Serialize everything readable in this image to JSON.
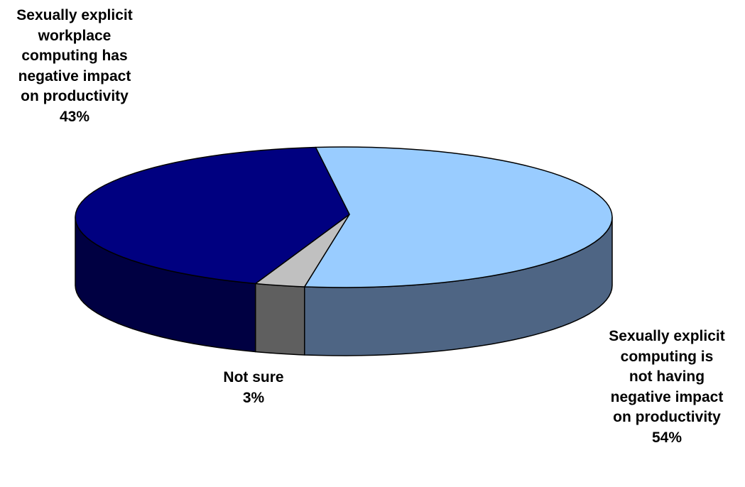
{
  "chart_data": {
    "type": "pie",
    "style": "3d",
    "title": "",
    "slices": [
      {
        "label_lines": [
          "Sexually explicit",
          "computing is",
          "not having",
          "negative impact",
          "on productivity"
        ],
        "value": 54,
        "value_label": "54%",
        "top_color": "#99CCFF",
        "side_color": "#4E6584"
      },
      {
        "label_lines": [
          "Not sure"
        ],
        "value": 3,
        "value_label": "3%",
        "top_color": "#C0C0C0",
        "side_color": "#5F5F5F"
      },
      {
        "label_lines": [
          "Sexually explicit",
          "workplace",
          "computing has",
          "negative impact",
          "on productivity"
        ],
        "value": 43,
        "value_label": "43%",
        "top_color": "#000080",
        "side_color": "#000042"
      }
    ]
  }
}
